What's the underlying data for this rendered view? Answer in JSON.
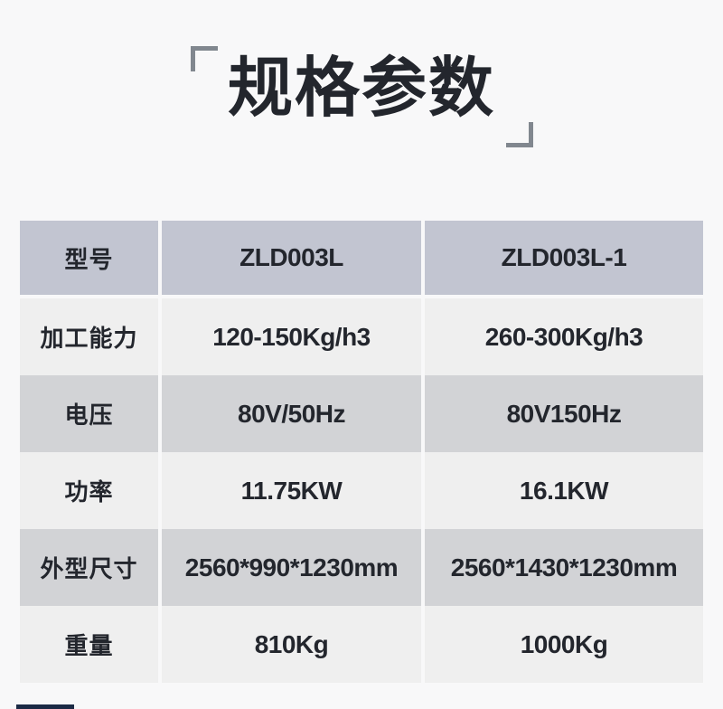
{
  "page": {
    "title": "规格参数"
  },
  "colors": {
    "page_bg": "#f8f8f9",
    "header_row_bg": "#c2c5d1",
    "row_light_bg": "#efefef",
    "row_gray_bg": "#d2d3d6",
    "text": "#23262d",
    "bracket": "#81878f",
    "bottom_bar": "#1b2a45"
  },
  "table": {
    "rows": [
      {
        "label": "型号",
        "col1": "ZLD003L",
        "col2": "ZLD003L-1"
      },
      {
        "label": "加工能力",
        "col1": "120-150Kg/h3",
        "col2": "260-300Kg/h3"
      },
      {
        "label": "电压",
        "col1": "80V/50Hz",
        "col2": "80V150Hz"
      },
      {
        "label": "功率",
        "col1": "11.75KW",
        "col2": "16.1KW"
      },
      {
        "label": "外型尺寸",
        "col1": "2560*990*1230mm",
        "col2": "2560*1430*1230mm"
      },
      {
        "label": "重量",
        "col1": "810Kg",
        "col2": "1000Kg"
      }
    ]
  }
}
